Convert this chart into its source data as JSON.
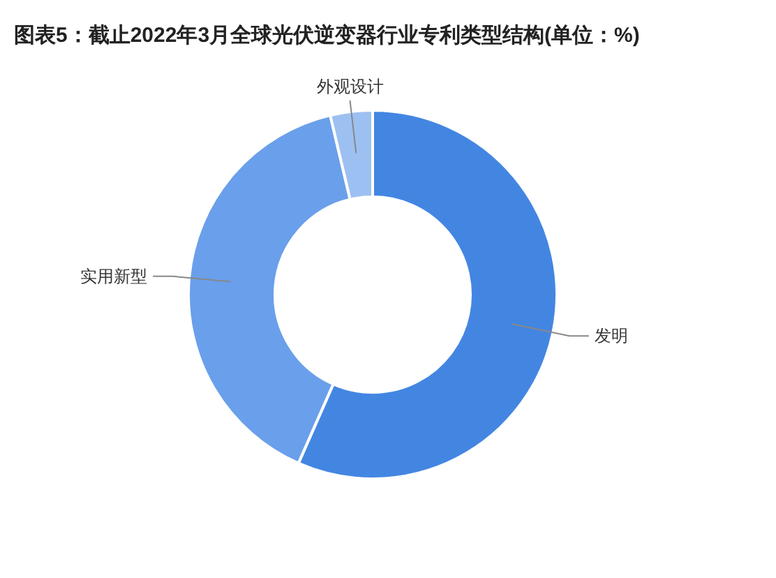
{
  "chart_data": {
    "type": "donut",
    "title": "图表5：截止2022年3月全球光伏逆变器行业专利类型结构(单位：%)",
    "categories": [
      "发明",
      "实用新型",
      "外观设计"
    ],
    "values": [
      56.6,
      39.7,
      3.7
    ],
    "colors": [
      "#4386e2",
      "#6a9feb",
      "#9dc0f2"
    ]
  }
}
